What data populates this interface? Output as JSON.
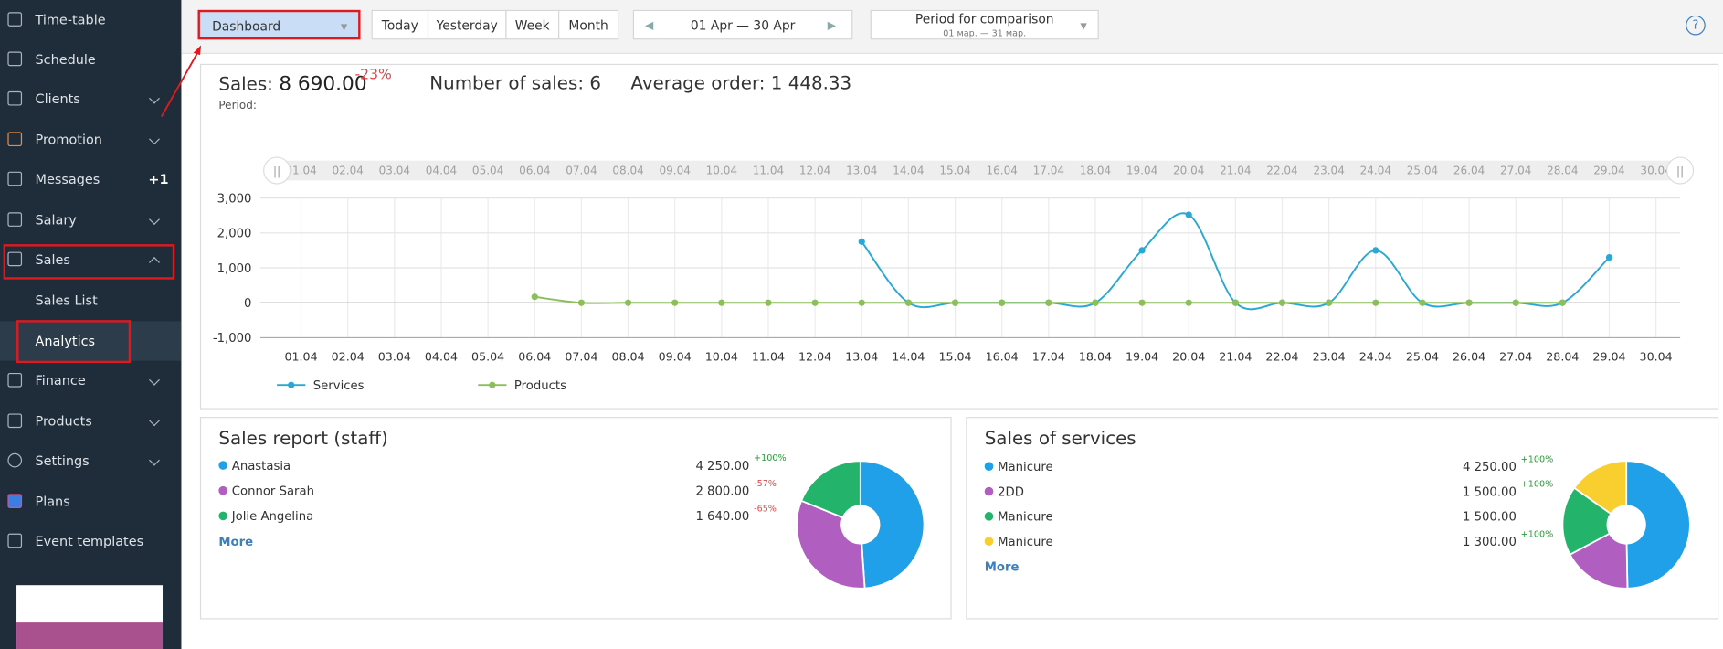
{
  "sidebar": {
    "items": [
      "Time-table",
      "Schedule",
      "Clients",
      "Promotion",
      "Messages",
      "Salary",
      "Sales",
      "Sales List",
      "Analytics",
      "Finance",
      "Products",
      "Settings",
      "Plans",
      "Event templates"
    ],
    "messages_badge": "+1"
  },
  "toolbar": {
    "view": "Dashboard",
    "periods": [
      "Today",
      "Yesterday",
      "Week",
      "Month"
    ],
    "date_range": "01 Apr — 30 Apr",
    "comparison_title": "Period for comparison",
    "comparison_range": "01 мар. — 31 мар.",
    "help": "?"
  },
  "summary": {
    "sales_label": "Sales:",
    "sales_value": "8 690.00",
    "sales_change": "-23%",
    "number_of_sales": "Number of sales: 6",
    "average_order": "Average order: 1 448.33",
    "period": "Period:"
  },
  "chart_data": [
    {
      "type": "line",
      "categories": [
        "01.04",
        "02.04",
        "03.04",
        "04.04",
        "05.04",
        "06.04",
        "07.04",
        "08.04",
        "09.04",
        "10.04",
        "11.04",
        "12.04",
        "13.04",
        "14.04",
        "15.04",
        "16.04",
        "17.04",
        "18.04",
        "19.04",
        "20.04",
        "21.04",
        "22.04",
        "23.04",
        "24.04",
        "25.04",
        "26.04",
        "27.04",
        "28.04",
        "29.04",
        "30.04"
      ],
      "series": [
        {
          "name": "Services",
          "color": "#29a8d6",
          "values": [
            null,
            null,
            null,
            null,
            null,
            null,
            null,
            null,
            null,
            null,
            null,
            null,
            1750,
            0,
            0,
            0,
            0,
            0,
            1500,
            2520,
            0,
            0,
            0,
            1500,
            0,
            0,
            0,
            0,
            1300,
            null
          ]
        },
        {
          "name": "Products",
          "color": "#8cbf5a",
          "values": [
            null,
            null,
            null,
            null,
            null,
            170,
            0,
            0,
            0,
            0,
            0,
            0,
            0,
            0,
            0,
            0,
            0,
            0,
            0,
            0,
            0,
            0,
            0,
            0,
            0,
            0,
            0,
            0,
            null,
            null
          ]
        }
      ],
      "ylim": [
        -1000,
        3000
      ],
      "yticks": [
        {
          "value": 3000,
          "label": "3,000"
        },
        {
          "value": 2000,
          "label": "2,000"
        },
        {
          "value": 1000,
          "label": "1,000"
        },
        0,
        {
          "value": -1000,
          "label": "-1,000"
        }
      ],
      "grid": true,
      "legend": "bottom-left"
    },
    {
      "type": "pie",
      "title": "Sales report (staff)",
      "categories": [
        "Anastasia",
        "Connor Sarah",
        "Jolie Angelina"
      ],
      "values": [
        4250,
        2800,
        1640
      ],
      "value_labels": [
        "4 250.00",
        "2 800.00",
        "1 640.00"
      ],
      "changes": [
        "+100%",
        "-57%",
        "-65%"
      ],
      "colors": [
        "#1fa0e8",
        "#b05fc0",
        "#24b36b"
      ],
      "more": "More"
    },
    {
      "type": "pie",
      "title": "Sales of services",
      "categories": [
        "Manicure",
        "2DD",
        "Manicure",
        "Manicure"
      ],
      "values": [
        4250,
        1500,
        1500,
        1300
      ],
      "value_labels": [
        "4 250.00",
        "1 500.00",
        "1 500.00",
        "1 300.00"
      ],
      "changes": [
        "+100%",
        "+100%",
        null,
        "+100%"
      ],
      "colors": [
        "#1fa0e8",
        "#b05fc0",
        "#24b36b",
        "#f8cf2f"
      ],
      "more": "More"
    }
  ]
}
